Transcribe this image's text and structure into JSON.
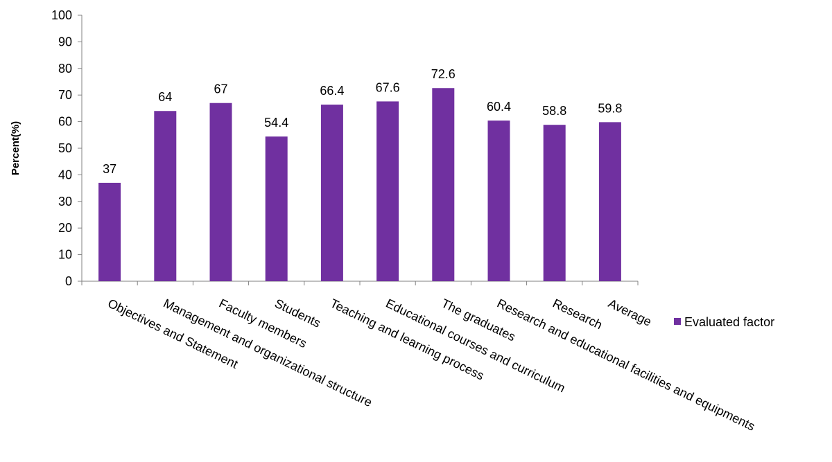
{
  "chart_data": {
    "type": "bar",
    "title": "",
    "xlabel": "",
    "ylabel": "Percent(%)",
    "ylim": [
      0,
      100
    ],
    "yticks": [
      0,
      10,
      20,
      30,
      40,
      50,
      60,
      70,
      80,
      90,
      100
    ],
    "grid": false,
    "legend_position": "right",
    "categories": [
      "Objectives and Statement",
      "Management and organizational  structure",
      "Faculty members",
      "Students",
      "Teaching and learning process",
      "Educational courses and curriculum",
      "The graduates",
      "Research and educational facilities and equipments",
      "Research",
      "Average"
    ],
    "series": [
      {
        "name": "Evaluated factor",
        "color": "#7030A0",
        "values": [
          37,
          64,
          67,
          54.4,
          66.4,
          67.6,
          72.6,
          60.4,
          58.8,
          59.8
        ]
      }
    ]
  }
}
